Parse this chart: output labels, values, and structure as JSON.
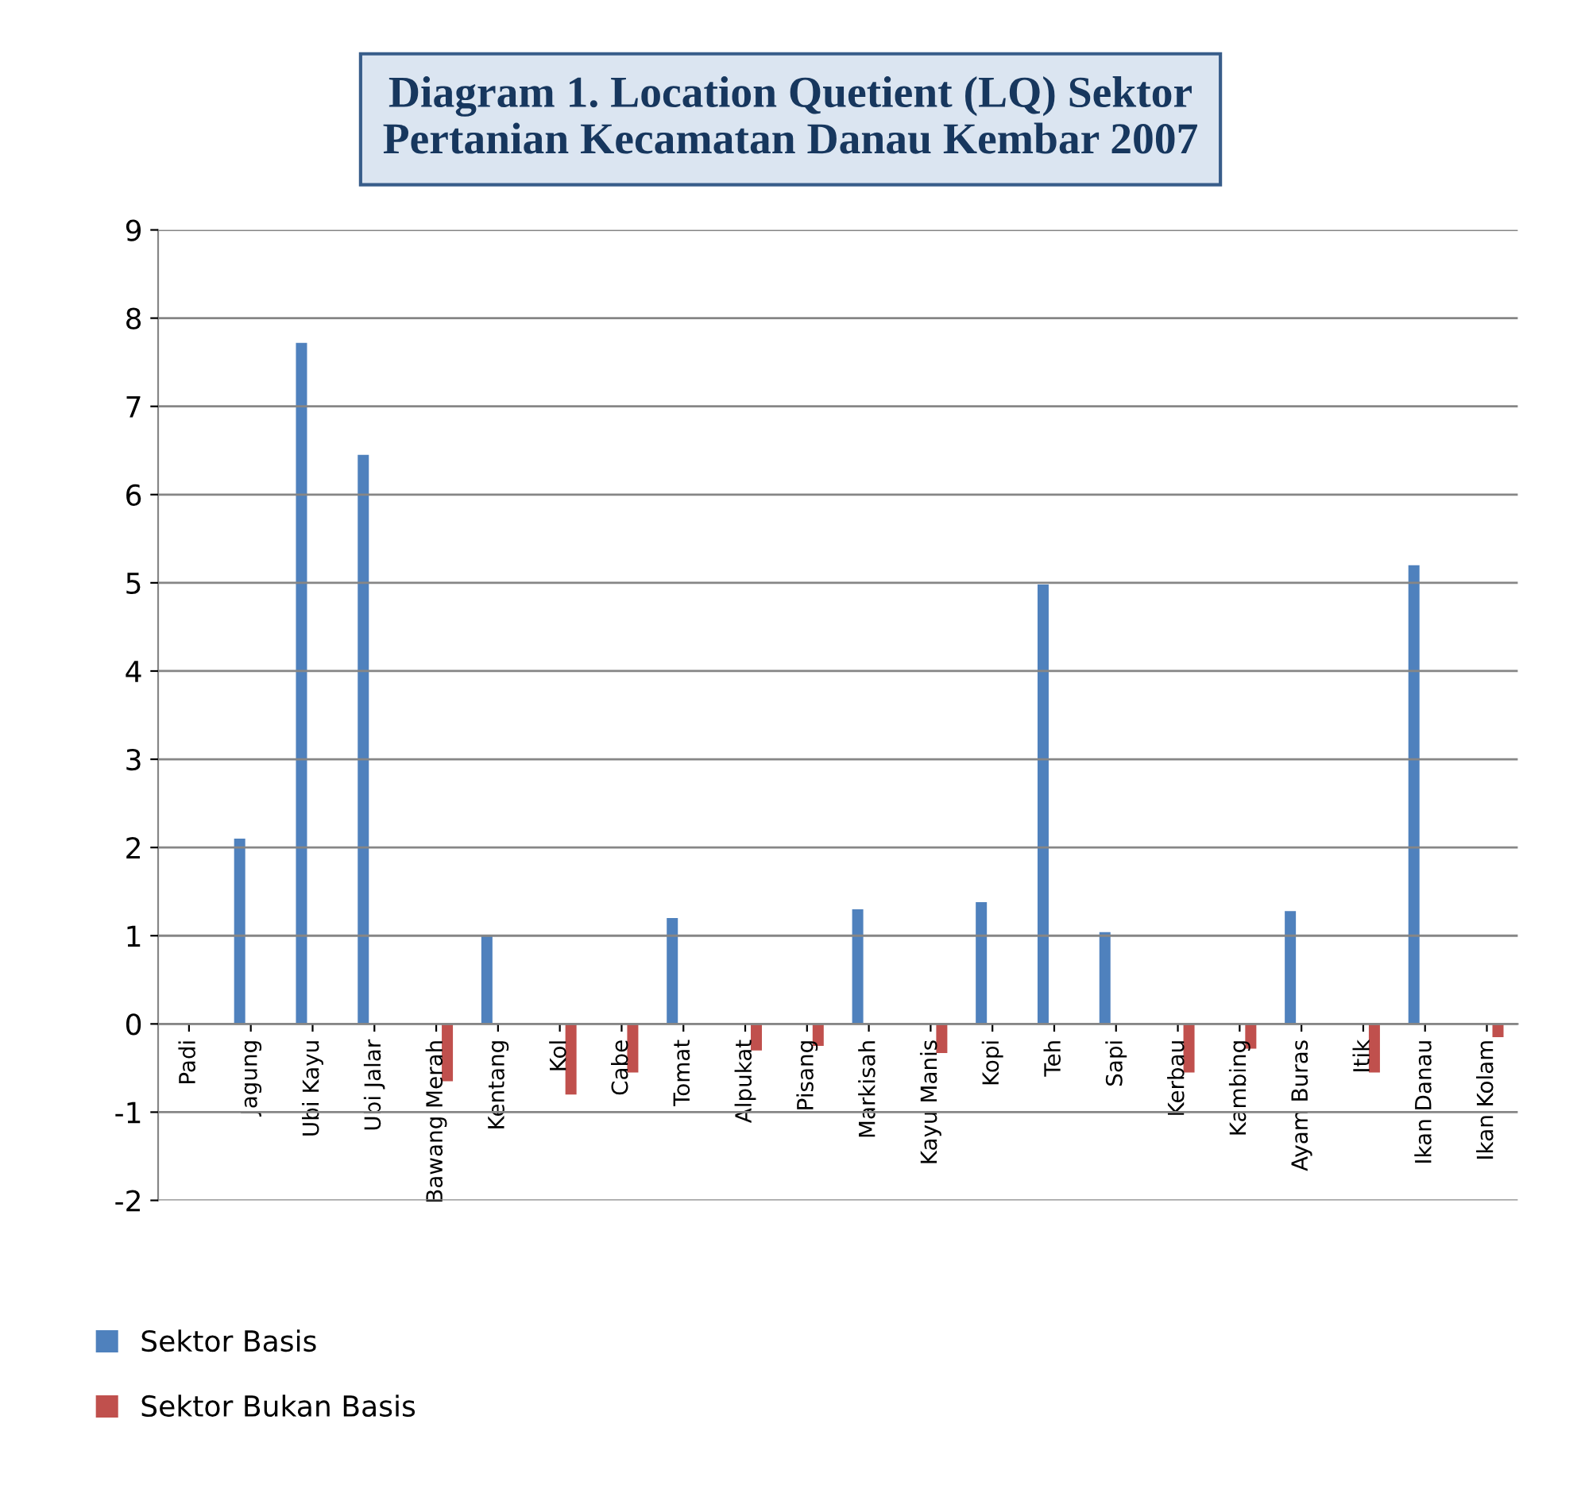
{
  "chart_data": {
    "type": "bar",
    "title": "Diagram 1. Location Quetient (LQ) Sektor\nPertanian Kecamatan Danau Kembar 2007",
    "categories": [
      "Padi",
      "Jagung",
      "Ubi Kayu",
      "Ubi Jalar",
      "Bawang Merah",
      "Kentang",
      "Kol",
      "Cabe",
      "Tomat",
      "Alpukat",
      "Pisang",
      "Markisah",
      "Kayu Manis",
      "Kopi",
      "Teh",
      "Sapi",
      "Kerbau",
      "Kambing",
      "Ayam Buras",
      "Itik",
      "Ikan Danau",
      "Ikan Kolam"
    ],
    "series": [
      {
        "name": "Sektor Basis",
        "color": "#4f81bd",
        "values": [
          null,
          2.1,
          7.72,
          6.45,
          null,
          1.0,
          null,
          null,
          1.2,
          null,
          null,
          1.3,
          null,
          1.38,
          4.98,
          1.04,
          null,
          null,
          1.28,
          null,
          5.2,
          null
        ]
      },
      {
        "name": "Sektor Bukan Basis",
        "color": "#c0504d",
        "values": [
          null,
          null,
          null,
          null,
          -0.65,
          null,
          -0.8,
          -0.55,
          null,
          -0.3,
          -0.25,
          null,
          -0.33,
          null,
          null,
          null,
          -0.55,
          -0.28,
          null,
          -0.55,
          null,
          -0.15
        ]
      }
    ],
    "ylim": [
      -2,
      9
    ],
    "yticks": [
      -2,
      -1,
      0,
      1,
      2,
      3,
      4,
      5,
      6,
      7,
      8,
      9
    ],
    "grid": "y",
    "legend": "bottom left"
  }
}
